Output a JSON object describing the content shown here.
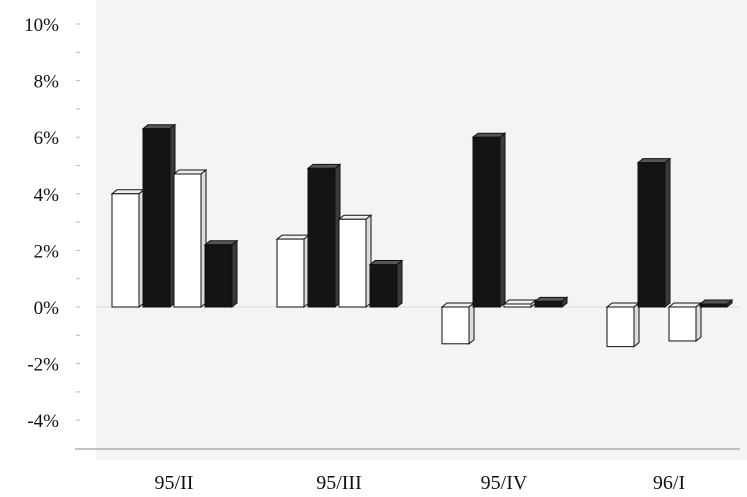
{
  "chart_data": {
    "type": "bar",
    "title": "",
    "xlabel": "",
    "ylabel": "",
    "categories": [
      "95/II",
      "95/III",
      "95/IV",
      "96/I"
    ],
    "yticks": [
      "10%",
      "8%",
      "6%",
      "4%",
      "2%",
      "0%",
      "-2%",
      "-4%"
    ],
    "ylim": [
      -5,
      10
    ],
    "grid": false,
    "legend": "none",
    "series": [
      {
        "color": "#ffffff",
        "values": [
          4.0,
          2.4,
          -1.3,
          -1.4
        ]
      },
      {
        "color": "#111111",
        "values": [
          6.3,
          4.9,
          6.0,
          5.1
        ]
      },
      {
        "color": "#ffffff",
        "values": [
          4.7,
          3.1,
          0.0,
          -1.2
        ]
      },
      {
        "color": "#111111",
        "values": [
          2.2,
          1.5,
          0.2,
          0.0
        ]
      }
    ]
  }
}
